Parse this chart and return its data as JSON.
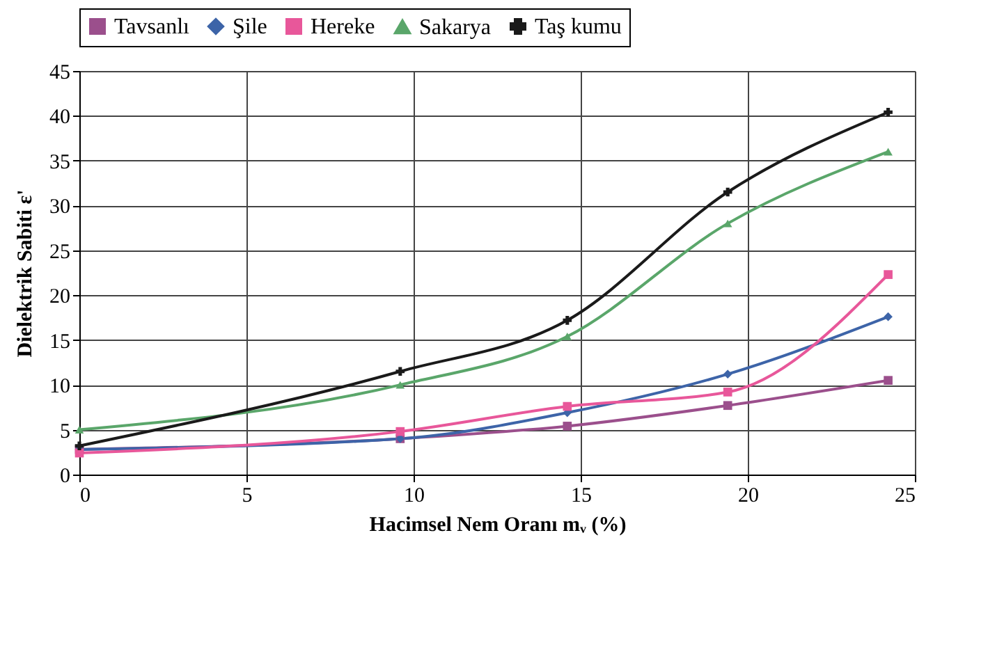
{
  "chart_data": {
    "type": "line",
    "xlabel": "Hacimsel  Nem  Oranı   mᵥ   (%)",
    "ylabel": "Dielektrik  Sabiti  ε'",
    "x": [
      0,
      9.6,
      14.6,
      19.4,
      24.2
    ],
    "series": [
      {
        "name": "Tavsanlı",
        "color": "#9b4f8c",
        "marker": "square",
        "values": [
          2.8,
          4.0,
          5.4,
          7.7,
          10.5
        ]
      },
      {
        "name": "Şile",
        "color": "#3d64a8",
        "marker": "diamond",
        "values": [
          2.8,
          4.0,
          6.9,
          11.2,
          17.6
        ]
      },
      {
        "name": "Hereke",
        "color": "#e8579a",
        "marker": "square",
        "values": [
          2.4,
          4.8,
          7.6,
          9.2,
          22.3
        ]
      },
      {
        "name": "Sakarya",
        "color": "#5aa66a",
        "marker": "triangle",
        "values": [
          5.0,
          10.0,
          15.4,
          28.0,
          36.0
        ]
      },
      {
        "name": "Taş kumu",
        "color": "#1a1a1a",
        "marker": "cross",
        "values": [
          3.2,
          11.5,
          17.2,
          31.5,
          40.4
        ]
      }
    ],
    "xlim": [
      0,
      25
    ],
    "xticks": [
      0,
      5,
      10,
      15,
      20,
      25
    ],
    "ylim": [
      0,
      45
    ],
    "yticks": [
      0,
      5,
      10,
      15,
      20,
      25,
      30,
      35,
      40,
      45
    ],
    "grid": true,
    "legend": "top",
    "line_style": "solid"
  }
}
